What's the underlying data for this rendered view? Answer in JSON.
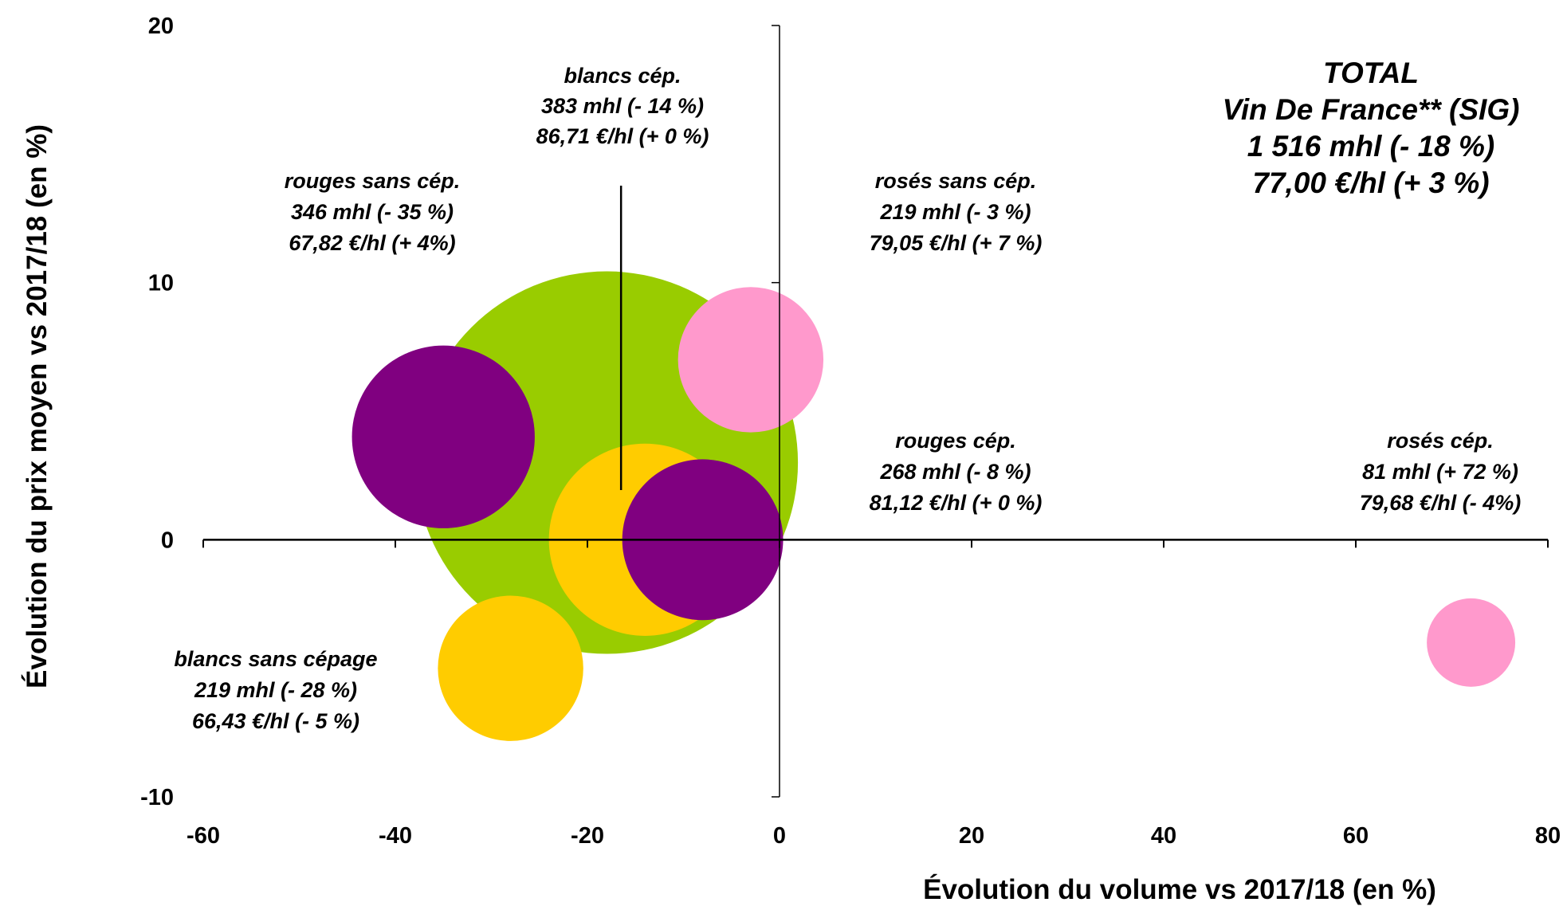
{
  "chart_data": {
    "type": "bubble",
    "xlabel": "Évolution du volume vs 2017/18 (en %)",
    "ylabel": "Évolution du prix moyen vs 2017/18 (en %)",
    "xlim": [
      -60,
      80
    ],
    "ylim": [
      -10,
      20
    ],
    "xticks": [
      "-60",
      "-40",
      "-20",
      "0",
      "20",
      "40",
      "60",
      "80"
    ],
    "yticks": [
      "-10",
      "0",
      "10",
      "20"
    ],
    "points": [
      {
        "name": "TOTAL",
        "x": -18,
        "y": 3,
        "size": 1516,
        "color": "#99CC00"
      },
      {
        "name": "rosés sans cép.",
        "x": -3,
        "y": 7,
        "size": 219,
        "color": "#FF99CC"
      },
      {
        "name": "rouges sans cép.",
        "x": -35,
        "y": 4,
        "size": 346,
        "color": "#800080"
      },
      {
        "name": "blancs cép.",
        "x": -14,
        "y": 0,
        "size": 383,
        "color": "#FFCC00"
      },
      {
        "name": "rouges cép.",
        "x": -8,
        "y": 0,
        "size": 268,
        "color": "#800080"
      },
      {
        "name": "blancs sans cépage",
        "x": -28,
        "y": -5,
        "size": 219,
        "color": "#FFCC00"
      },
      {
        "name": "rosés cép.",
        "x": 72,
        "y": -4,
        "size": 81,
        "color": "#FF99CC"
      }
    ],
    "annotations": [
      {
        "id": "total",
        "lines": [
          "TOTAL",
          "Vin De France** (SIG)",
          "1 516 mhl (- 18 %)",
          "77,00 €/hl (+ 3 %)"
        ]
      },
      {
        "id": "blancs-cep",
        "lines": [
          "blancs cép.",
          "383 mhl (- 14 %)",
          "86,71 €/hl (+ 0 %)"
        ]
      },
      {
        "id": "rouges-sans-cep",
        "lines": [
          "rouges sans cép.",
          "346 mhl (- 35 %)",
          "67,82 €/hl (+ 4%)"
        ]
      },
      {
        "id": "roses-sans-cep",
        "lines": [
          "rosés sans cép.",
          "219 mhl (- 3 %)",
          "79,05 €/hl (+ 7 %)"
        ]
      },
      {
        "id": "rouges-cep",
        "lines": [
          "rouges cép.",
          "268 mhl (- 8 %)",
          "81,12 €/hl (+ 0 %)"
        ]
      },
      {
        "id": "roses-cep",
        "lines": [
          "rosés cép.",
          "81 mhl (+ 72 %)",
          "79,68 €/hl (- 4%)"
        ]
      },
      {
        "id": "blancs-sans-cepage",
        "lines": [
          "blancs sans cépage",
          "219 mhl (- 28 %)",
          "66,43 €/hl (- 5 %)"
        ]
      }
    ]
  }
}
